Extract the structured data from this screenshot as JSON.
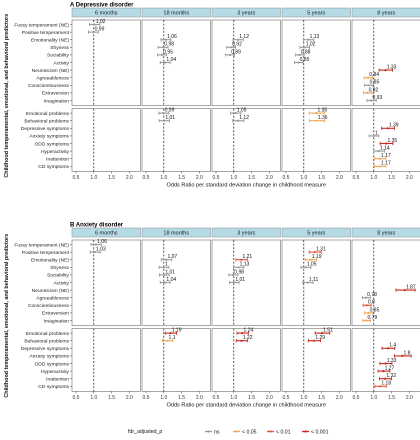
{
  "colors": {
    "ns": "#9a9a9a",
    "p05": "#f0a55a",
    "p01": "#e0533a",
    "p001": "#c62a1f",
    "strip": "#b4dbe6"
  },
  "legend": {
    "title": "fdr_adjusted_p",
    "items": [
      {
        "key": "ns",
        "label": "ns"
      },
      {
        "key": "p05",
        "label": "< 0.05"
      },
      {
        "key": "p01",
        "label": "< 0.01"
      },
      {
        "key": "p001",
        "label": "< 0.001"
      }
    ]
  },
  "chart_data": [
    {
      "type": "forest",
      "title": "A  Depressive disorder",
      "panels": [
        "6 months",
        "18 months",
        "3 years",
        "5 years",
        "8 years"
      ],
      "xlabel": "Odds Ratio per standard deviation change in childhood measure",
      "ylabel": "Childhood temperamental, emotional, and behavioral predictors",
      "xticks": [
        0.5,
        1.0,
        1.5,
        2.0
      ],
      "xlim": [
        0.5,
        2.2
      ],
      "reference_line": 1.0,
      "grid": false,
      "groups": [
        [
          "Fussy temperament (NE)",
          "Positive temperament",
          "Emotionality (NE)",
          "Shyness",
          "Sociability",
          "Activity",
          "Neuroticism (NE)",
          "Agreeableness",
          "Conscientiousness",
          "Extraversion",
          "Imagination"
        ],
        [
          "Emotional problems",
          "Behavioral problems",
          "Depressive symptoms",
          "Anxiety symptoms",
          "ODD symptoms",
          "Hyperactivity",
          "Inattention",
          "CD symptoms"
        ]
      ],
      "estimates": [
        {
          "panel": 0,
          "predictor": "Fussy temperament (NE)",
          "or": 1.02,
          "lo": 0.88,
          "hi": 1.17,
          "p": "ns"
        },
        {
          "panel": 0,
          "predictor": "Positive temperament",
          "or": 0.99,
          "lo": 0.85,
          "hi": 1.13,
          "p": "ns"
        },
        {
          "panel": 1,
          "predictor": "Emotionality (NE)",
          "or": 1.06,
          "lo": 0.92,
          "hi": 1.2,
          "p": "ns"
        },
        {
          "panel": 1,
          "predictor": "Shyness",
          "or": 0.98,
          "lo": 0.84,
          "hi": 1.12,
          "p": "ns"
        },
        {
          "panel": 1,
          "predictor": "Sociability",
          "or": 0.95,
          "lo": 0.82,
          "hi": 1.08,
          "p": "ns"
        },
        {
          "panel": 1,
          "predictor": "Activity",
          "or": 1.04,
          "lo": 0.9,
          "hi": 1.18,
          "p": "ns"
        },
        {
          "panel": 2,
          "predictor": "Emotionality (NE)",
          "or": 1.12,
          "lo": 0.98,
          "hi": 1.27,
          "p": "ns"
        },
        {
          "panel": 2,
          "predictor": "Shyness",
          "or": 0.92,
          "lo": 0.8,
          "hi": 1.05,
          "p": "ns"
        },
        {
          "panel": 2,
          "predictor": "Sociability",
          "or": 0.89,
          "lo": 0.77,
          "hi": 1.02,
          "p": "ns"
        },
        {
          "panel": 3,
          "predictor": "Emotionality (NE)",
          "or": 1.13,
          "lo": 0.99,
          "hi": 1.28,
          "p": "ns"
        },
        {
          "panel": 3,
          "predictor": "Shyness",
          "or": 1.02,
          "lo": 0.89,
          "hi": 1.16,
          "p": "ns"
        },
        {
          "panel": 3,
          "predictor": "Sociability",
          "or": 0.88,
          "lo": 0.77,
          "hi": 1.01,
          "p": "ns"
        },
        {
          "panel": 3,
          "predictor": "Activity",
          "or": 0.85,
          "lo": 0.74,
          "hi": 0.98,
          "p": "ns"
        },
        {
          "panel": 4,
          "predictor": "Neuroticism (NE)",
          "or": 1.33,
          "lo": 1.15,
          "hi": 1.53,
          "p": "p001"
        },
        {
          "panel": 4,
          "predictor": "Agreeableness",
          "or": 0.84,
          "lo": 0.73,
          "hi": 0.97,
          "p": "p05"
        },
        {
          "panel": 4,
          "predictor": "Conscientiousness",
          "or": 0.85,
          "lo": 0.74,
          "hi": 0.98,
          "p": "ns"
        },
        {
          "panel": 4,
          "predictor": "Extraversion",
          "or": 0.82,
          "lo": 0.71,
          "hi": 0.95,
          "p": "p05"
        },
        {
          "panel": 4,
          "predictor": "Imagination",
          "or": 0.93,
          "lo": 0.81,
          "hi": 1.07,
          "p": "ns"
        },
        {
          "panel": 1,
          "predictor": "Emotional problems",
          "or": 0.99,
          "lo": 0.86,
          "hi": 1.14,
          "p": "ns"
        },
        {
          "panel": 1,
          "predictor": "Behavioral problems",
          "or": 1.01,
          "lo": 0.87,
          "hi": 1.16,
          "p": "ns"
        },
        {
          "panel": 2,
          "predictor": "Emotional problems",
          "or": 1.05,
          "lo": 0.91,
          "hi": 1.2,
          "p": "ns"
        },
        {
          "panel": 2,
          "predictor": "Behavioral problems",
          "or": 1.12,
          "lo": 0.97,
          "hi": 1.28,
          "p": "ns"
        },
        {
          "panel": 3,
          "predictor": "Emotional problems",
          "or": 1.35,
          "lo": 1.15,
          "hi": 1.58,
          "p": "p05"
        },
        {
          "panel": 3,
          "predictor": "Behavioral problems",
          "or": 1.36,
          "lo": 1.16,
          "hi": 1.59,
          "p": "p05"
        },
        {
          "panel": 4,
          "predictor": "Depressive symptoms",
          "or": 1.39,
          "lo": 1.22,
          "hi": 1.58,
          "p": "p001"
        },
        {
          "panel": 4,
          "predictor": "Anxiety symptoms",
          "or": 1.0,
          "lo": 0.87,
          "hi": 1.14,
          "p": "ns"
        },
        {
          "panel": 4,
          "predictor": "ODD symptoms",
          "or": 1.35,
          "lo": 1.18,
          "hi": 1.54,
          "p": "p001"
        },
        {
          "panel": 4,
          "predictor": "Hyperactivity",
          "or": 1.14,
          "lo": 1.0,
          "hi": 1.3,
          "p": "ns"
        },
        {
          "panel": 4,
          "predictor": "Inattention",
          "or": 1.17,
          "lo": 1.02,
          "hi": 1.34,
          "p": "p05"
        },
        {
          "panel": 4,
          "predictor": "CD symptoms",
          "or": 1.17,
          "lo": 1.02,
          "hi": 1.34,
          "p": "p05"
        }
      ]
    },
    {
      "type": "forest",
      "title": "B  Anxiety disorder",
      "panels": [
        "6 months",
        "18 months",
        "3 years",
        "5 years",
        "8 years"
      ],
      "xlabel": "Odds Ratio per standard deviation change in childhood measure",
      "ylabel": "Childhood temperamental, emotional, and behavioral predictors",
      "xticks": [
        0.5,
        1.0,
        1.5,
        2.0
      ],
      "xlim": [
        0.5,
        2.2
      ],
      "reference_line": 1.0,
      "grid": false,
      "groups": [
        [
          "Fussy temperament (NE)",
          "Positive temperament",
          "Emotionality (NE)",
          "Shyness",
          "Sociability",
          "Activity",
          "Neuroticism (NE)",
          "Agreeableness",
          "Conscientiousness",
          "Extraversion",
          "Imagination"
        ],
        [
          "Emotional problems",
          "Behavioral problems",
          "Depressive symptoms",
          "Anxiety symptoms",
          "ODD symptoms",
          "Hyperactivity",
          "Inattention",
          "CD symptoms"
        ]
      ],
      "estimates": [
        {
          "panel": 0,
          "predictor": "Fussy temperament (NE)",
          "or": 1.06,
          "lo": 0.92,
          "hi": 1.21,
          "p": "ns"
        },
        {
          "panel": 0,
          "predictor": "Positive temperament",
          "or": 1.03,
          "lo": 0.9,
          "hi": 1.18,
          "p": "ns"
        },
        {
          "panel": 1,
          "predictor": "Emotionality (NE)",
          "or": 1.07,
          "lo": 0.93,
          "hi": 1.22,
          "p": "ns"
        },
        {
          "panel": 1,
          "predictor": "Shyness",
          "or": 1.0,
          "lo": 0.87,
          "hi": 1.14,
          "p": "ns"
        },
        {
          "panel": 1,
          "predictor": "Sociability",
          "or": 1.01,
          "lo": 0.88,
          "hi": 1.15,
          "p": "ns"
        },
        {
          "panel": 1,
          "predictor": "Activity",
          "or": 1.04,
          "lo": 0.9,
          "hi": 1.18,
          "p": "ns"
        },
        {
          "panel": 2,
          "predictor": "Emotionality (NE)",
          "or": 1.21,
          "lo": 1.06,
          "hi": 1.38,
          "p": "p01"
        },
        {
          "panel": 2,
          "predictor": "Shyness",
          "or": 1.13,
          "lo": 0.99,
          "hi": 1.28,
          "p": "ns"
        },
        {
          "panel": 2,
          "predictor": "Sociability",
          "or": 0.98,
          "lo": 0.86,
          "hi": 1.12,
          "p": "ns"
        },
        {
          "panel": 2,
          "predictor": "Activity",
          "or": 1.01,
          "lo": 0.88,
          "hi": 1.15,
          "p": "ns"
        },
        {
          "panel": 3,
          "predictor": "Positive temperament",
          "or": 1.31,
          "lo": 1.15,
          "hi": 1.49,
          "p": "p01"
        },
        {
          "panel": 3,
          "predictor": "Emotionality (NE)",
          "or": 1.19,
          "lo": 1.04,
          "hi": 1.36,
          "p": "p05"
        },
        {
          "panel": 3,
          "predictor": "Shyness",
          "or": 1.05,
          "lo": 0.92,
          "hi": 1.2,
          "p": "ns"
        },
        {
          "panel": 3,
          "predictor": "Activity",
          "or": 1.11,
          "lo": 0.97,
          "hi": 1.26,
          "p": "ns"
        },
        {
          "panel": 4,
          "predictor": "Neuroticism (NE)",
          "or": 1.87,
          "lo": 1.62,
          "hi": 2.16,
          "p": "p001"
        },
        {
          "panel": 4,
          "predictor": "Agreeableness",
          "or": 0.78,
          "lo": 0.68,
          "hi": 0.9,
          "p": "ns"
        },
        {
          "panel": 4,
          "predictor": "Conscientiousness",
          "or": 0.8,
          "lo": 0.7,
          "hi": 0.92,
          "p": "p01"
        },
        {
          "panel": 4,
          "predictor": "Extraversion",
          "or": 0.85,
          "lo": 0.74,
          "hi": 0.98,
          "p": "p05"
        },
        {
          "panel": 4,
          "predictor": "Imagination",
          "or": 0.79,
          "lo": 0.69,
          "hi": 0.91,
          "p": "p05"
        },
        {
          "panel": 1,
          "predictor": "Emotional problems",
          "or": 1.19,
          "lo": 1.04,
          "hi": 1.36,
          "p": "p001"
        },
        {
          "panel": 1,
          "predictor": "Behavioral problems",
          "or": 1.1,
          "lo": 0.96,
          "hi": 1.25,
          "p": "p05"
        },
        {
          "panel": 2,
          "predictor": "Emotional problems",
          "or": 1.24,
          "lo": 1.09,
          "hi": 1.41,
          "p": "p001"
        },
        {
          "panel": 2,
          "predictor": "Behavioral problems",
          "or": 1.22,
          "lo": 1.07,
          "hi": 1.39,
          "p": "p001"
        },
        {
          "panel": 3,
          "predictor": "Emotional problems",
          "or": 1.51,
          "lo": 1.32,
          "hi": 1.73,
          "p": "p001"
        },
        {
          "panel": 3,
          "predictor": "Behavioral problems",
          "or": 1.29,
          "lo": 1.13,
          "hi": 1.47,
          "p": "p001"
        },
        {
          "panel": 4,
          "predictor": "Depressive symptoms",
          "or": 1.4,
          "lo": 1.23,
          "hi": 1.59,
          "p": "p001"
        },
        {
          "panel": 4,
          "predictor": "Anxiety symptoms",
          "or": 1.8,
          "lo": 1.58,
          "hi": 2.05,
          "p": "p001"
        },
        {
          "panel": 4,
          "predictor": "ODD symptoms",
          "or": 1.33,
          "lo": 1.17,
          "hi": 1.51,
          "p": "p001"
        },
        {
          "panel": 4,
          "predictor": "Hyperactivity",
          "or": 1.27,
          "lo": 1.12,
          "hi": 1.45,
          "p": "p001"
        },
        {
          "panel": 4,
          "predictor": "Inattention",
          "or": 1.32,
          "lo": 1.16,
          "hi": 1.5,
          "p": "p001"
        },
        {
          "panel": 4,
          "predictor": "CD symptoms",
          "or": 1.18,
          "lo": 1.03,
          "hi": 1.35,
          "p": "p01"
        }
      ]
    }
  ]
}
